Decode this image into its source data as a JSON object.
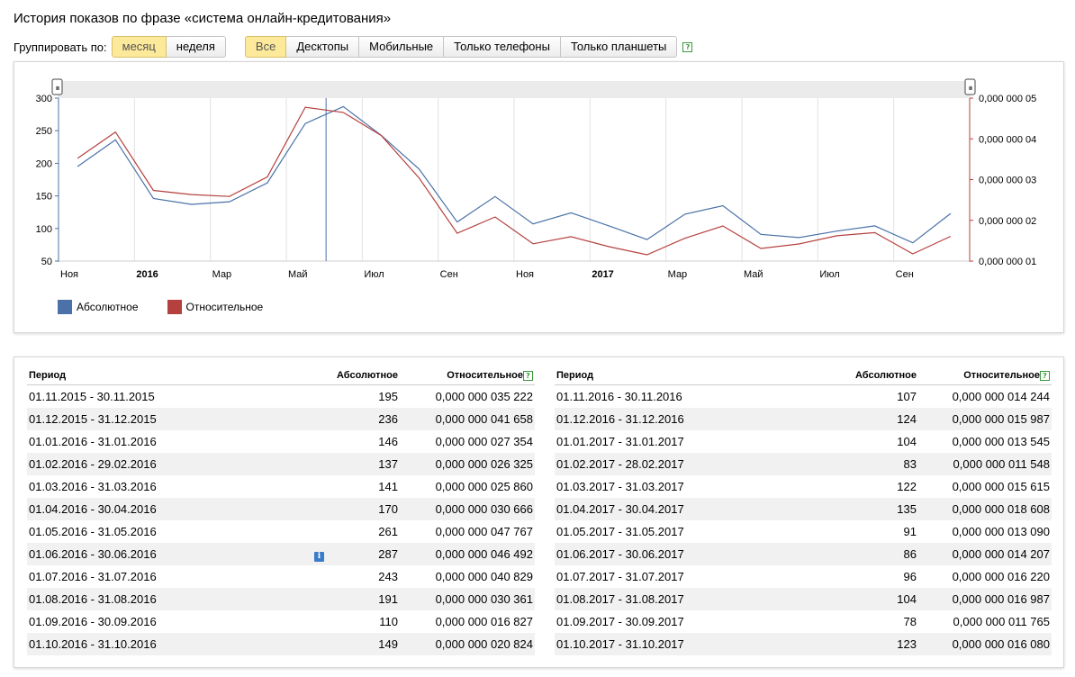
{
  "page": {
    "title": "История показов по фразе «система онлайн-кредитования»"
  },
  "controls": {
    "group_by_label": "Группировать по:",
    "group_by": [
      {
        "label": "месяц",
        "active": true
      },
      {
        "label": "неделя",
        "active": false
      }
    ],
    "devices": [
      {
        "label": "Все",
        "active": true
      },
      {
        "label": "Десктопы",
        "active": false
      },
      {
        "label": "Мобильные",
        "active": false
      },
      {
        "label": "Только телефоны",
        "active": false
      },
      {
        "label": "Только планшеты",
        "active": false
      }
    ],
    "help_glyph": "?"
  },
  "colors": {
    "absolute": "#4a72a8",
    "relative": "#b5413e",
    "accent": "#fde99a",
    "zebra": "#f1f1f1"
  },
  "chart_data": {
    "type": "line",
    "categories": [
      "11.2015",
      "12.2015",
      "01.2016",
      "02.2016",
      "03.2016",
      "04.2016",
      "05.2016",
      "06.2016",
      "07.2016",
      "08.2016",
      "09.2016",
      "10.2016",
      "11.2016",
      "12.2016",
      "01.2017",
      "02.2017",
      "03.2017",
      "04.2017",
      "05.2017",
      "06.2017",
      "07.2017",
      "08.2017",
      "09.2017",
      "10.2017"
    ],
    "series": [
      {
        "name": "Абсолютное",
        "axis": "left",
        "color": "#4a72a8",
        "values": [
          195,
          236,
          146,
          137,
          141,
          170,
          261,
          287,
          243,
          191,
          110,
          149,
          107,
          124,
          104,
          83,
          122,
          135,
          91,
          86,
          96,
          104,
          78,
          123
        ]
      },
      {
        "name": "Относительное",
        "axis": "right",
        "color": "#b5413e",
        "values": [
          3.5222e-08,
          4.1658e-08,
          2.7354e-08,
          2.6325e-08,
          2.586e-08,
          3.0666e-08,
          4.7767e-08,
          4.6492e-08,
          4.0829e-08,
          3.0361e-08,
          1.6827e-08,
          2.0824e-08,
          1.4244e-08,
          1.5987e-08,
          1.3545e-08,
          1.1548e-08,
          1.5615e-08,
          1.8608e-08,
          1.309e-08,
          1.4207e-08,
          1.622e-08,
          1.6987e-08,
          1.1765e-08,
          1.608e-08
        ]
      }
    ],
    "y_left": {
      "ylim": [
        50,
        300
      ],
      "ticks": [
        "300",
        "250",
        "200",
        "150",
        "100",
        "50"
      ]
    },
    "y_right": {
      "ylim": [
        1e-08,
        5e-08
      ],
      "ticks": [
        "0,000 000 05",
        "0,000 000 04",
        "0,000 000 03",
        "0,000 000 02",
        "0,000 000 01"
      ]
    },
    "x_tick_labels": [
      {
        "label": "Ноя",
        "bold": false
      },
      {
        "label": "2016",
        "bold": true
      },
      {
        "label": "Мар",
        "bold": false
      },
      {
        "label": "Май",
        "bold": false
      },
      {
        "label": "Июл",
        "bold": false
      },
      {
        "label": "Сен",
        "bold": false
      },
      {
        "label": "Ноя",
        "bold": false
      },
      {
        "label": "2017",
        "bold": true
      },
      {
        "label": "Мар",
        "bold": false
      },
      {
        "label": "Май",
        "bold": false
      },
      {
        "label": "Июл",
        "bold": false
      },
      {
        "label": "Сен",
        "bold": false
      }
    ],
    "selected_index": 7,
    "grid": true,
    "legend": "bottom-left",
    "range_handle_glyph": "⏸"
  },
  "table": {
    "headers": {
      "period": "Период",
      "absolute": "Абсолютное",
      "relative": "Относительное"
    },
    "left_rows": [
      {
        "period": "01.11.2015 - 30.11.2015",
        "absolute": "195",
        "relative": "0,000 000 035 222"
      },
      {
        "period": "01.12.2015 - 31.12.2015",
        "absolute": "236",
        "relative": "0,000 000 041 658"
      },
      {
        "period": "01.01.2016 - 31.01.2016",
        "absolute": "146",
        "relative": "0,000 000 027 354"
      },
      {
        "period": "01.02.2016 - 29.02.2016",
        "absolute": "137",
        "relative": "0,000 000 026 325"
      },
      {
        "period": "01.03.2016 - 31.03.2016",
        "absolute": "141",
        "relative": "0,000 000 025 860"
      },
      {
        "period": "01.04.2016 - 30.04.2016",
        "absolute": "170",
        "relative": "0,000 000 030 666"
      },
      {
        "period": "01.05.2016 - 31.05.2016",
        "absolute": "261",
        "relative": "0,000 000 047 767"
      },
      {
        "period": "01.06.2016 - 30.06.2016",
        "absolute": "287",
        "relative": "0,000 000 046 492",
        "info": "i"
      },
      {
        "period": "01.07.2016 - 31.07.2016",
        "absolute": "243",
        "relative": "0,000 000 040 829"
      },
      {
        "period": "01.08.2016 - 31.08.2016",
        "absolute": "191",
        "relative": "0,000 000 030 361"
      },
      {
        "period": "01.09.2016 - 30.09.2016",
        "absolute": "110",
        "relative": "0,000 000 016 827"
      },
      {
        "period": "01.10.2016 - 31.10.2016",
        "absolute": "149",
        "relative": "0,000 000 020 824"
      }
    ],
    "right_rows": [
      {
        "period": "01.11.2016 - 30.11.2016",
        "absolute": "107",
        "relative": "0,000 000 014 244"
      },
      {
        "period": "01.12.2016 - 31.12.2016",
        "absolute": "124",
        "relative": "0,000 000 015 987"
      },
      {
        "period": "01.01.2017 - 31.01.2017",
        "absolute": "104",
        "relative": "0,000 000 013 545"
      },
      {
        "period": "01.02.2017 - 28.02.2017",
        "absolute": "83",
        "relative": "0,000 000 011 548"
      },
      {
        "period": "01.03.2017 - 31.03.2017",
        "absolute": "122",
        "relative": "0,000 000 015 615"
      },
      {
        "period": "01.04.2017 - 30.04.2017",
        "absolute": "135",
        "relative": "0,000 000 018 608"
      },
      {
        "period": "01.05.2017 - 31.05.2017",
        "absolute": "91",
        "relative": "0,000 000 013 090"
      },
      {
        "period": "01.06.2017 - 30.06.2017",
        "absolute": "86",
        "relative": "0,000 000 014 207"
      },
      {
        "period": "01.07.2017 - 31.07.2017",
        "absolute": "96",
        "relative": "0,000 000 016 220"
      },
      {
        "period": "01.08.2017 - 31.08.2017",
        "absolute": "104",
        "relative": "0,000 000 016 987"
      },
      {
        "period": "01.09.2017 - 30.09.2017",
        "absolute": "78",
        "relative": "0,000 000 011 765"
      },
      {
        "period": "01.10.2017 - 31.10.2017",
        "absolute": "123",
        "relative": "0,000 000 016 080"
      }
    ]
  }
}
